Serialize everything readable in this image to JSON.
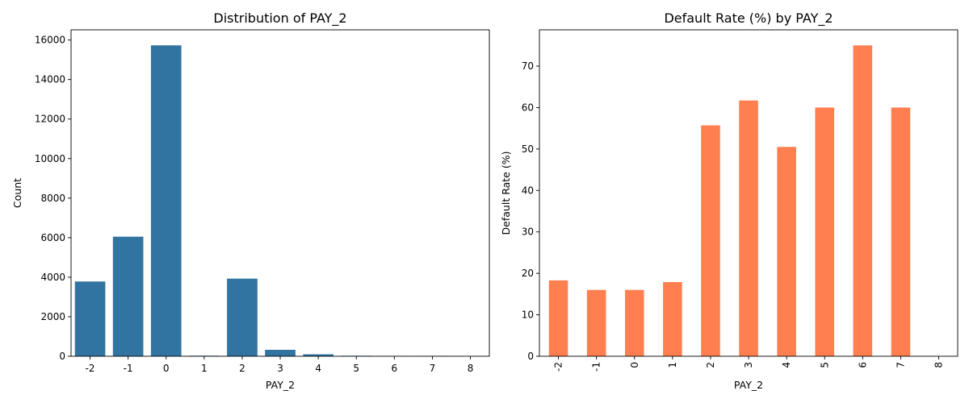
{
  "chart_data": [
    {
      "type": "bar",
      "title": "Distribution of PAY_2",
      "xlabel": "PAY_2",
      "ylabel": "Count",
      "categories": [
        "-2",
        "-1",
        "0",
        "1",
        "2",
        "3",
        "4",
        "5",
        "6",
        "7",
        "8"
      ],
      "values": [
        3782,
        6050,
        15730,
        28,
        3927,
        326,
        99,
        25,
        12,
        20,
        1
      ],
      "ylim": [
        0,
        16515
      ],
      "yticks": [
        0,
        2000,
        4000,
        6000,
        8000,
        10000,
        12000,
        14000,
        16000
      ],
      "color": "#3274a1",
      "xtick_rotation": 0,
      "grid": false
    },
    {
      "type": "bar",
      "title": "Default Rate (%) by PAY_2",
      "xlabel": "PAY_2",
      "ylabel": "Default Rate (%)",
      "categories": [
        "-2",
        "-1",
        "0",
        "1",
        "2",
        "3",
        "4",
        "5",
        "6",
        "7",
        "8"
      ],
      "values": [
        18.3,
        16.0,
        16.0,
        17.9,
        55.7,
        61.7,
        50.5,
        60.0,
        75.0,
        60.0,
        0
      ],
      "ylim": [
        0,
        78.75
      ],
      "yticks": [
        0,
        10,
        20,
        30,
        40,
        50,
        60,
        70
      ],
      "color": "#ff7f50",
      "xtick_rotation": 90,
      "grid": false
    }
  ]
}
